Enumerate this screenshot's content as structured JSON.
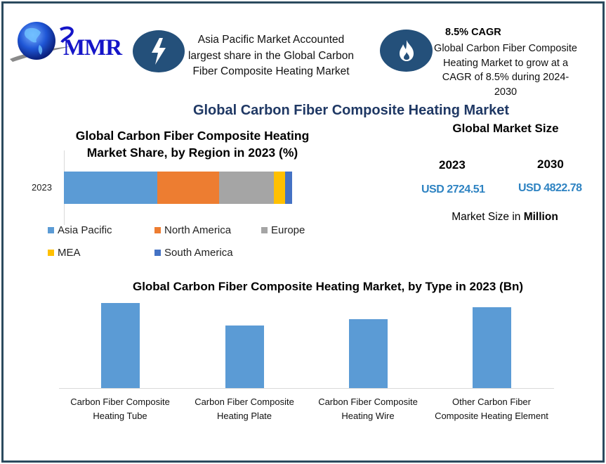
{
  "brand": {
    "logo_text": "MMR"
  },
  "callouts": [
    {
      "icon": "lightning-bolt-icon",
      "text": "Asia Pacific Market Accounted largest share in the Global Carbon Fiber Composite Heating Market"
    },
    {
      "icon": "flame-icon",
      "title": "8.5% CAGR",
      "text": "Global Carbon Fiber Composite Heating Market to grow at a CAGR of 8.5% during 2024-2030"
    }
  ],
  "main_title": "Global Carbon Fiber Composite Heating Market",
  "market_size": {
    "title": "Global Market Size",
    "years": [
      {
        "year": "2023",
        "value": "USD 2724.51"
      },
      {
        "year": "2030",
        "value": "USD 4822.78"
      }
    ],
    "unit_prefix": "Market Size in ",
    "unit_bold": "Million"
  },
  "colors": {
    "frame": "#2b4a5e",
    "icon_circle": "#24507a",
    "title_navy": "#1f3864",
    "usd_blue": "#2e83c2",
    "bar_blue": "#5b9bd5"
  },
  "chart_data": [
    {
      "type": "bar",
      "orientation": "horizontal-stacked",
      "title": "Global Carbon Fiber Composite Heating Market Share, by Region in 2023 (%)",
      "categories": [
        "2023"
      ],
      "series": [
        {
          "name": "Asia Pacific",
          "color": "#5b9bd5",
          "values": [
            41
          ]
        },
        {
          "name": "North America",
          "color": "#ed7d31",
          "values": [
            27
          ]
        },
        {
          "name": "Europe",
          "color": "#a5a5a5",
          "values": [
            24
          ]
        },
        {
          "name": "MEA",
          "color": "#ffc000",
          "values": [
            5
          ]
        },
        {
          "name": "South America",
          "color": "#4472c4",
          "values": [
            3
          ]
        }
      ],
      "xlabel": "",
      "ylabel": "",
      "legend_position": "bottom",
      "grid": false
    },
    {
      "type": "bar",
      "title": "Global Carbon Fiber Composite Heating Market, by Type in 2023 (Bn)",
      "categories": [
        "Carbon Fiber Composite Heating Tube",
        "Carbon Fiber Composite Heating Plate",
        "Carbon Fiber Composite Heating Wire",
        "Other Carbon Fiber Composite Heating Element"
      ],
      "category_lines": [
        [
          "Carbon Fiber Composite",
          "Heating Tube"
        ],
        [
          "Carbon Fiber Composite",
          "Heating Plate"
        ],
        [
          "Carbon Fiber Composite",
          "Heating Wire"
        ],
        [
          "Other Carbon Fiber",
          "Composite Heating Element"
        ]
      ],
      "values": [
        0.79,
        0.58,
        0.64,
        0.75
      ],
      "values_note": "relative estimates; no value axis shown",
      "color": "#5b9bd5",
      "xlabel": "",
      "ylabel": "",
      "grid": false
    }
  ]
}
